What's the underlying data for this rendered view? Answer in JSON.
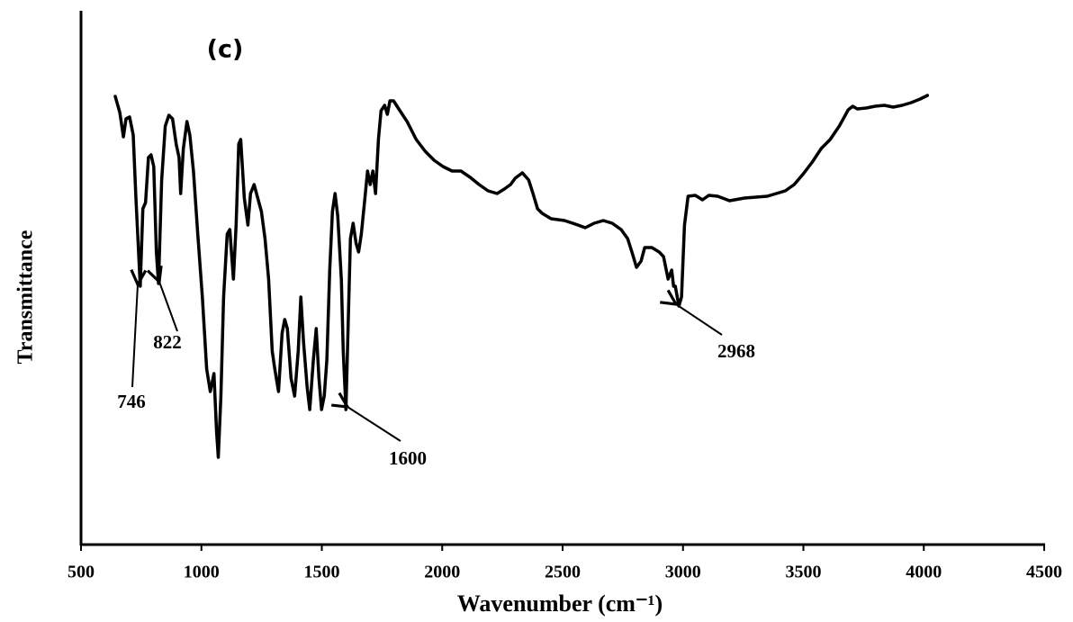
{
  "chart_data": {
    "type": "line",
    "panel_label": "(c)",
    "x_label": "Wavenumber (cm⁻¹)",
    "y_label": "Transmittance",
    "color": "#000000",
    "xlim": [
      500,
      4500
    ],
    "xticks": [
      500,
      1000,
      1500,
      2000,
      2500,
      3000,
      3500,
      4000,
      4500
    ],
    "ylim": [
      0,
      600
    ],
    "grid": false,
    "annotations": [
      {
        "text": "746",
        "x": 746
      },
      {
        "text": "822",
        "x": 822
      },
      {
        "text": "1600",
        "x": 1600
      },
      {
        "text": "2968",
        "x": 2968
      }
    ],
    "x": [
      642,
      661,
      676,
      687,
      702,
      717,
      728,
      746,
      757,
      768,
      780,
      791,
      802,
      813,
      822,
      835,
      850,
      865,
      880,
      895,
      907,
      914,
      925,
      940,
      952,
      967,
      985,
      1004,
      1022,
      1037,
      1052,
      1063,
      1070,
      1081,
      1092,
      1107,
      1118,
      1133,
      1144,
      1155,
      1163,
      1178,
      1193,
      1204,
      1219,
      1234,
      1249,
      1264,
      1279,
      1294,
      1305,
      1320,
      1335,
      1346,
      1357,
      1372,
      1387,
      1402,
      1413,
      1424,
      1439,
      1450,
      1465,
      1477,
      1488,
      1499,
      1510,
      1521,
      1533,
      1544,
      1555,
      1566,
      1581,
      1589,
      1600,
      1608,
      1619,
      1630,
      1642,
      1653,
      1664,
      1679,
      1690,
      1701,
      1712,
      1723,
      1735,
      1746,
      1761,
      1772,
      1783,
      1798,
      1817,
      1854,
      1892,
      1929,
      1966,
      2003,
      2041,
      2078,
      2116,
      2153,
      2190,
      2228,
      2258,
      2284,
      2303,
      2333,
      2359,
      2377,
      2396,
      2415,
      2452,
      2508,
      2564,
      2594,
      2631,
      2669,
      2706,
      2743,
      2770,
      2788,
      2807,
      2826,
      2841,
      2871,
      2901,
      2919,
      2938,
      2953,
      2961,
      2968,
      2983,
      2994,
      3006,
      3021,
      3051,
      3081,
      3107,
      3144,
      3193,
      3256,
      3350,
      3425,
      3462,
      3500,
      3537,
      3574,
      3611,
      3649,
      3686,
      3705,
      3724,
      3761,
      3798,
      3836,
      3873,
      3910,
      3948,
      3985,
      4015
    ],
    "values": [
      498,
      480,
      453,
      473,
      475,
      455,
      385,
      287,
      373,
      380,
      430,
      433,
      420,
      325,
      290,
      405,
      465,
      477,
      473,
      445,
      430,
      390,
      440,
      470,
      455,
      415,
      345,
      275,
      195,
      170,
      190,
      125,
      97,
      165,
      275,
      345,
      350,
      295,
      355,
      445,
      450,
      385,
      355,
      390,
      400,
      385,
      370,
      340,
      295,
      215,
      195,
      170,
      235,
      250,
      240,
      185,
      165,
      215,
      275,
      225,
      175,
      150,
      205,
      240,
      185,
      150,
      165,
      205,
      305,
      370,
      390,
      365,
      295,
      215,
      150,
      230,
      340,
      357,
      335,
      325,
      345,
      385,
      415,
      400,
      415,
      390,
      450,
      482,
      488,
      478,
      493,
      493,
      485,
      470,
      450,
      437,
      427,
      420,
      415,
      415,
      408,
      400,
      393,
      390,
      395,
      400,
      407,
      413,
      405,
      390,
      373,
      368,
      362,
      360,
      355,
      352,
      357,
      360,
      357,
      350,
      340,
      325,
      308,
      315,
      330,
      330,
      325,
      320,
      295,
      305,
      287,
      287,
      265,
      275,
      355,
      387,
      388,
      383,
      388,
      387,
      382,
      385,
      387,
      393,
      400,
      412,
      425,
      440,
      450,
      465,
      483,
      487,
      484,
      485,
      487,
      488,
      486,
      488,
      491,
      495,
      499
    ]
  }
}
